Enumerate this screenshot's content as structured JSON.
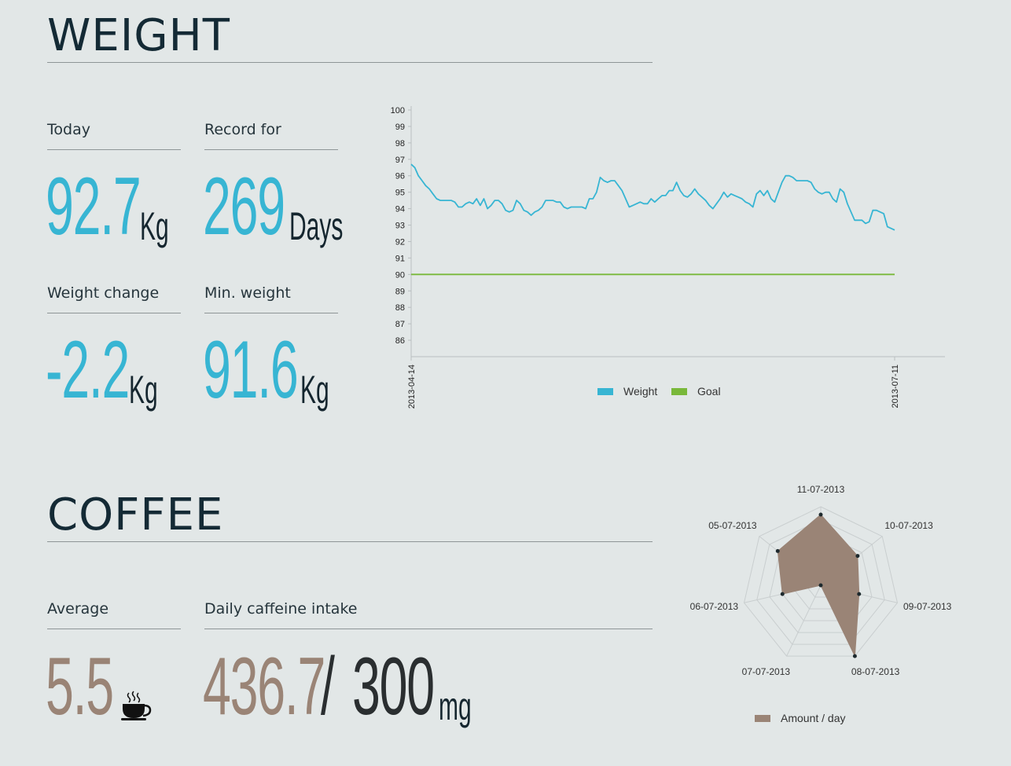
{
  "weight": {
    "title": "WEIGHT",
    "stats": {
      "today": {
        "label": "Today",
        "value": "92.7",
        "unit": "Kg"
      },
      "record": {
        "label": "Record for",
        "value": "269",
        "unit": "Days"
      },
      "change": {
        "label": "Weight change",
        "value": "-2.2",
        "unit": "Kg"
      },
      "min": {
        "label": "Min. weight",
        "value": "91.6",
        "unit": "Kg"
      }
    }
  },
  "coffee": {
    "title": "COFFEE",
    "average": {
      "label": "Average",
      "value": "5.5",
      "icon": "coffee-cup-icon"
    },
    "intake": {
      "label": "Daily caffeine intake",
      "value": "436.7",
      "separator": "/",
      "limit": "300",
      "unit": "mg"
    }
  },
  "colors": {
    "accent": "#37b5d3",
    "goal": "#79b83a",
    "coffee": "#9a8476",
    "dark": "#142a35"
  },
  "chart_data": [
    {
      "type": "line",
      "title": "",
      "xlabel": "",
      "ylabel": "",
      "x_tick_labels": [
        "2013-04-14",
        "2013-07-11"
      ],
      "ylim": [
        85,
        100
      ],
      "y_ticks": [
        86,
        87,
        88,
        89,
        90,
        91,
        92,
        93,
        94,
        95,
        96,
        97,
        98,
        99,
        100
      ],
      "legend": "bottom",
      "series": [
        {
          "name": "Weight",
          "color": "#37b5d3",
          "values": [
            96.7,
            96.5,
            96.0,
            95.7,
            95.4,
            95.2,
            94.9,
            94.6,
            94.5,
            94.5,
            94.5,
            94.5,
            94.4,
            94.1,
            94.1,
            94.3,
            94.4,
            94.3,
            94.6,
            94.2,
            94.6,
            94.0,
            94.2,
            94.5,
            94.5,
            94.3,
            93.9,
            93.8,
            93.9,
            94.5,
            94.3,
            93.9,
            93.8,
            93.6,
            93.8,
            93.9,
            94.1,
            94.5,
            94.5,
            94.5,
            94.4,
            94.4,
            94.1,
            94.0,
            94.1,
            94.1,
            94.1,
            94.1,
            94.0,
            94.6,
            94.6,
            95.0,
            95.9,
            95.7,
            95.6,
            95.7,
            95.7,
            95.4,
            95.1,
            94.6,
            94.1,
            94.2,
            94.3,
            94.4,
            94.3,
            94.3,
            94.6,
            94.4,
            94.6,
            94.8,
            94.8,
            95.1,
            95.1,
            95.6,
            95.1,
            94.8,
            94.7,
            94.9,
            95.2,
            94.9,
            94.7,
            94.5,
            94.2,
            94.0,
            94.3,
            94.6,
            95.0,
            94.7,
            94.9,
            94.8,
            94.7,
            94.6,
            94.4,
            94.3,
            94.1,
            94.9,
            95.1,
            94.8,
            95.1,
            94.6,
            94.4,
            95.0,
            95.6,
            96.0,
            96.0,
            95.9,
            95.7,
            95.7,
            95.7,
            95.7,
            95.6,
            95.2,
            95.0,
            94.9,
            95.0,
            95.0,
            94.6,
            94.4,
            95.2,
            95.0,
            94.3,
            93.8,
            93.3,
            93.3,
            93.3,
            93.1,
            93.2,
            93.9,
            93.9,
            93.8,
            93.7,
            92.9,
            92.8,
            92.7
          ]
        },
        {
          "name": "Goal",
          "color": "#79b83a",
          "values": [
            90,
            90
          ]
        }
      ]
    },
    {
      "type": "radar",
      "title": "",
      "axes": [
        "11-07-2013",
        "10-07-2013",
        "09-07-2013",
        "08-07-2013",
        "07-07-2013",
        "06-07-2013",
        "05-07-2013"
      ],
      "rmax": 10,
      "rings": 6,
      "legend": "bottom",
      "series": [
        {
          "name": "Amount / day",
          "color": "#9a8476",
          "values": [
            9,
            6,
            5,
            10,
            0,
            5,
            7
          ]
        }
      ]
    }
  ]
}
